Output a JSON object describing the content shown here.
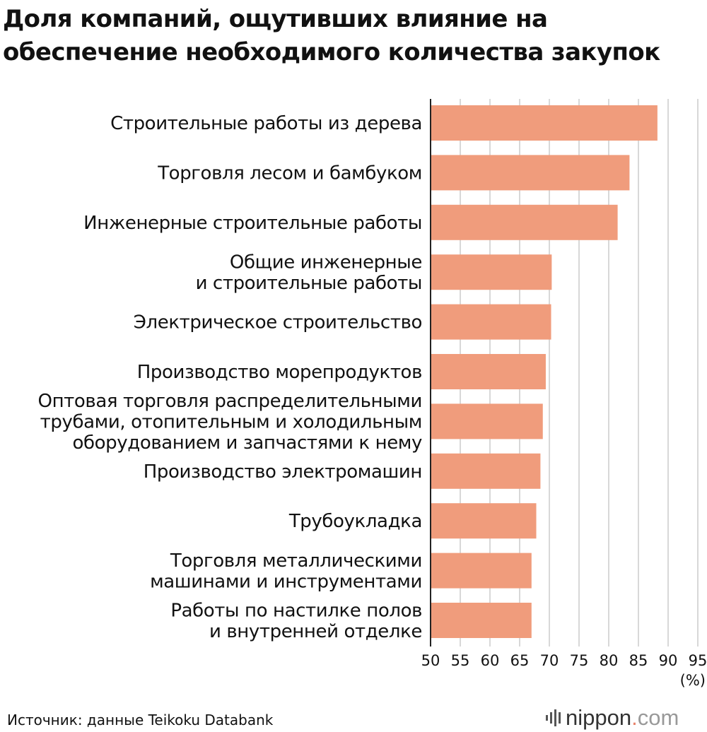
{
  "title_lines": [
    "Доля компаний, ощутивших влияние на",
    "обеспечение необходимого количества закупок"
  ],
  "chart_data": {
    "type": "bar",
    "orientation": "horizontal",
    "categories": [
      [
        "Строительные работы из дерева"
      ],
      [
        "Торговля лесом и бамбуком"
      ],
      [
        "Инженерные строительные работы"
      ],
      [
        "Общие инженерные",
        "и строительные работы"
      ],
      [
        "Электрическое строительство"
      ],
      [
        "Производство морепродуктов"
      ],
      [
        "Оптовая торговля распределительными",
        "трубами, отопительным и холодильным",
        "оборудованием и запчастями к нему"
      ],
      [
        "Производство электромашин"
      ],
      [
        "Трубоукладка"
      ],
      [
        "Торговля металлическими",
        "машинами и инструментами"
      ],
      [
        "Работы по настилке полов",
        "и внутренней отделке"
      ]
    ],
    "values": [
      88.2,
      83.5,
      81.5,
      70.4,
      70.3,
      69.4,
      68.9,
      68.5,
      67.8,
      67.0,
      67.0
    ],
    "xlim": [
      50,
      95
    ],
    "xticks": [
      "50",
      "55",
      "60",
      "65",
      "70",
      "75",
      "80",
      "85",
      "90",
      "95"
    ],
    "unit_label": "(%)",
    "bar_color": "#f09c7c",
    "grid": true,
    "grid_color": "#cfcfcf"
  },
  "source": "Источник: данные Teikoku Databank",
  "logo": {
    "name": "nippon",
    "dot": ".",
    "suffix": "com",
    "accent": "#e8826a"
  }
}
